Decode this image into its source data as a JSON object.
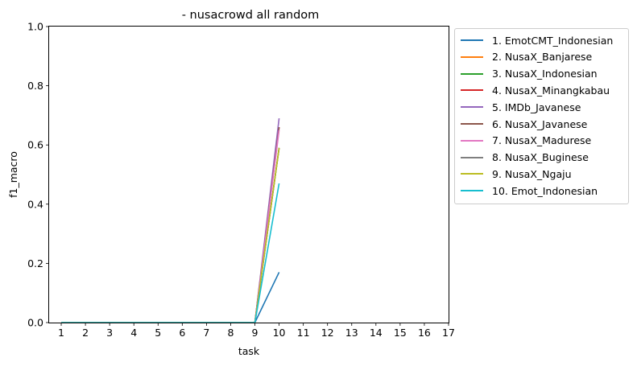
{
  "chart_data": {
    "type": "line",
    "title": "- nusacrowd all random",
    "xlabel": "task",
    "ylabel": "f1_macro",
    "xlim": [
      0.5,
      17
    ],
    "ylim": [
      0,
      1.0
    ],
    "x_ticks": [
      1,
      2,
      3,
      4,
      5,
      6,
      7,
      8,
      9,
      10,
      11,
      12,
      13,
      14,
      15,
      16,
      17
    ],
    "y_ticks": [
      0.0,
      0.2,
      0.4,
      0.6,
      0.8,
      1.0
    ],
    "y_tick_labels": [
      "0.0",
      "0.2",
      "0.4",
      "0.6",
      "0.8",
      "1.0"
    ],
    "grid": false,
    "legend_position": "outside-right",
    "series": [
      {
        "name": "1. EmotCMT_Indonesian",
        "color": "#1f77b4",
        "x": [
          1,
          2,
          3,
          4,
          5,
          6,
          7,
          8,
          9,
          10
        ],
        "values": [
          0,
          0,
          0,
          0,
          0,
          0,
          0,
          0,
          0,
          0.17
        ]
      },
      {
        "name": "2. NusaX_Banjarese",
        "color": "#ff7f0e",
        "x": [
          1,
          2,
          3,
          4,
          5,
          6,
          7,
          8,
          9,
          10
        ],
        "values": [
          0,
          0,
          0,
          0,
          0,
          0,
          0,
          0,
          0,
          0.59
        ]
      },
      {
        "name": "3. NusaX_Indonesian",
        "color": "#2ca02c",
        "x": [
          1,
          2,
          3,
          4,
          5,
          6,
          7,
          8,
          9,
          10
        ],
        "values": [
          0,
          0,
          0,
          0,
          0,
          0,
          0,
          0,
          0,
          0.59
        ]
      },
      {
        "name": "4. NusaX_Minangkabau",
        "color": "#d62728",
        "x": [
          1,
          2,
          3,
          4,
          5,
          6,
          7,
          8,
          9,
          10
        ],
        "values": [
          0,
          0,
          0,
          0,
          0,
          0,
          0,
          0,
          0,
          0.66
        ]
      },
      {
        "name": "5. IMDb_Javanese",
        "color": "#9467bd",
        "x": [
          1,
          2,
          3,
          4,
          5,
          6,
          7,
          8,
          9,
          10
        ],
        "values": [
          0,
          0,
          0,
          0,
          0,
          0,
          0,
          0,
          0,
          0.69
        ]
      },
      {
        "name": "6. NusaX_Javanese",
        "color": "#8c564b",
        "x": [
          1,
          2,
          3,
          4,
          5,
          6,
          7,
          8,
          9,
          10
        ],
        "values": [
          0,
          0,
          0,
          0,
          0,
          0,
          0,
          0,
          0,
          0.66
        ]
      },
      {
        "name": "7. NusaX_Madurese",
        "color": "#e377c2",
        "x": [
          1,
          2,
          3,
          4,
          5,
          6,
          7,
          8,
          9,
          10
        ],
        "values": [
          0,
          0,
          0,
          0,
          0,
          0,
          0,
          0,
          0,
          0.65
        ]
      },
      {
        "name": "8. NusaX_Buginese",
        "color": "#7f7f7f",
        "x": [
          1,
          2,
          3,
          4,
          5,
          6,
          7,
          8,
          9,
          10
        ],
        "values": [
          0,
          0,
          0,
          0,
          0,
          0,
          0,
          0,
          0,
          0.59
        ]
      },
      {
        "name": "9. NusaX_Ngaju",
        "color": "#bcbd22",
        "x": [
          1,
          2,
          3,
          4,
          5,
          6,
          7,
          8,
          9,
          10
        ],
        "values": [
          0,
          0,
          0,
          0,
          0,
          0,
          0,
          0,
          0,
          0.59
        ]
      },
      {
        "name": "10. Emot_Indonesian",
        "color": "#17becf",
        "x": [
          1,
          2,
          3,
          4,
          5,
          6,
          7,
          8,
          9,
          10
        ],
        "values": [
          0,
          0,
          0,
          0,
          0,
          0,
          0,
          0,
          0,
          0.47
        ]
      }
    ]
  }
}
